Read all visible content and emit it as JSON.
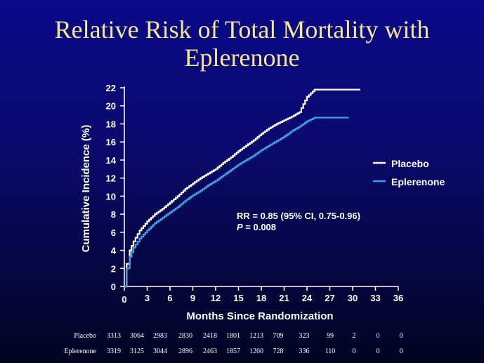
{
  "title_line1": "Relative Risk of Total Mortality with",
  "title_line2": "Eplerenone",
  "chart_data": {
    "type": "line",
    "xlabel": "Months Since Randomization",
    "ylabel": "Cumulative Incidence (%)",
    "xlim": [
      0,
      36
    ],
    "ylim": [
      0,
      22
    ],
    "x_ticks": [
      0,
      3,
      6,
      9,
      12,
      15,
      18,
      21,
      24,
      27,
      30,
      33,
      36
    ],
    "y_ticks": [
      0,
      2,
      4,
      6,
      8,
      10,
      12,
      14,
      16,
      18,
      20,
      22
    ],
    "grid": false,
    "legend_position": "right",
    "series": [
      {
        "name": "Placebo",
        "color": "#ffffff",
        "points": [
          [
            0,
            0
          ],
          [
            0.3,
            2.5
          ],
          [
            0.7,
            4.0
          ],
          [
            1.2,
            5.0
          ],
          [
            2,
            6.2
          ],
          [
            3,
            7.2
          ],
          [
            4,
            8.0
          ],
          [
            5,
            8.6
          ],
          [
            6,
            9.3
          ],
          [
            7,
            10.0
          ],
          [
            8,
            10.8
          ],
          [
            9,
            11.4
          ],
          [
            10,
            12.0
          ],
          [
            11,
            12.5
          ],
          [
            12,
            13.0
          ],
          [
            13,
            13.7
          ],
          [
            14,
            14.3
          ],
          [
            15,
            15.0
          ],
          [
            16,
            15.6
          ],
          [
            17,
            16.2
          ],
          [
            18,
            16.9
          ],
          [
            19,
            17.5
          ],
          [
            20,
            18.0
          ],
          [
            21,
            18.4
          ],
          [
            22,
            18.8
          ],
          [
            23,
            19.3
          ],
          [
            23.5,
            20.2
          ],
          [
            24,
            21.0
          ],
          [
            24.5,
            21.4
          ],
          [
            25,
            21.8
          ],
          [
            26,
            21.8
          ],
          [
            28,
            21.8
          ],
          [
            31,
            21.8
          ]
        ]
      },
      {
        "name": "Eplerenone",
        "color": "#3fa0e0",
        "points": [
          [
            0,
            0
          ],
          [
            0.3,
            2.0
          ],
          [
            0.7,
            3.3
          ],
          [
            1.2,
            4.3
          ],
          [
            2,
            5.3
          ],
          [
            3,
            6.2
          ],
          [
            4,
            7.0
          ],
          [
            5,
            7.6
          ],
          [
            6,
            8.2
          ],
          [
            7,
            8.8
          ],
          [
            8,
            9.5
          ],
          [
            9,
            10.1
          ],
          [
            10,
            10.6
          ],
          [
            11,
            11.2
          ],
          [
            12,
            11.7
          ],
          [
            13,
            12.3
          ],
          [
            14,
            12.9
          ],
          [
            15,
            13.5
          ],
          [
            16,
            14.0
          ],
          [
            17,
            14.5
          ],
          [
            18,
            15.1
          ],
          [
            19,
            15.6
          ],
          [
            20,
            16.1
          ],
          [
            21,
            16.6
          ],
          [
            22,
            17.2
          ],
          [
            23,
            17.7
          ],
          [
            24,
            18.3
          ],
          [
            25,
            18.7
          ],
          [
            27,
            18.7
          ],
          [
            29.5,
            18.7
          ]
        ]
      }
    ],
    "annotation_line1": "RR = 0.85 (95% CI, 0.75-0.96)",
    "annotation_line2_italic": "P",
    "annotation_line2_rest": " = 0.008",
    "risk_table": {
      "columns": [
        0,
        3,
        6,
        9,
        12,
        15,
        18,
        21,
        24,
        27,
        30,
        33,
        36
      ],
      "rows": [
        {
          "label": "Placebo",
          "values": [
            "3313",
            "3064",
            "2983",
            "2830",
            "2418",
            "1801",
            "1213",
            "709",
            "323",
            "99",
            "2",
            "0",
            "0"
          ]
        },
        {
          "label": "Eplerenone",
          "values": [
            "3319",
            "3125",
            "3044",
            "2896",
            "2463",
            "1857",
            "1260",
            "728",
            "336",
            "110",
            "0",
            "0",
            "0"
          ]
        }
      ]
    }
  }
}
